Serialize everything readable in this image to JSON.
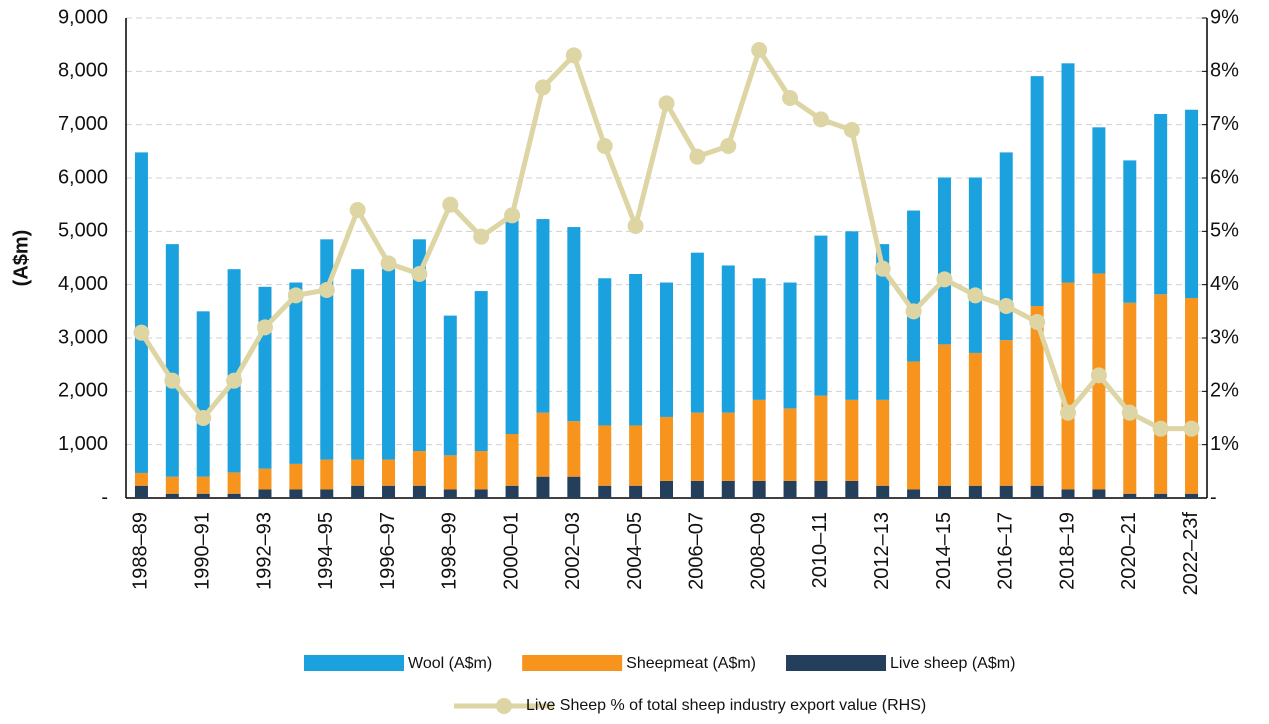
{
  "chart_data": {
    "type": "bar",
    "stacked": true,
    "ylabel": "(A$m)",
    "categories": [
      "1988–89",
      null,
      "1990–91",
      null,
      "1992–93",
      null,
      "1994–95",
      null,
      "1996–97",
      null,
      "1998–99",
      null,
      "2000–01",
      null,
      "2002–03",
      null,
      "2004–05",
      null,
      "2006–07",
      null,
      "2008–09",
      null,
      "2010–11",
      null,
      "2012–13",
      null,
      "2014–15",
      null,
      "2016–17",
      null,
      "2018–19",
      null,
      "2020–21",
      null,
      "2022–23f"
    ],
    "series": [
      {
        "name": "Wool (A$m)",
        "color": "#1ba1de",
        "values": [
          6010,
          4360,
          3100,
          3810,
          3410,
          3400,
          4130,
          3570,
          3580,
          3970,
          2620,
          3000,
          4070,
          3630,
          3640,
          2760,
          2840,
          2520,
          3000,
          2760,
          2280,
          2360,
          3000,
          3160,
          2920,
          2830,
          3130,
          3290,
          3520,
          4310,
          4110,
          2740,
          2670,
          3380,
          3530
        ]
      },
      {
        "name": "Sheepmeat (A$m)",
        "color": "#f7941d",
        "values": [
          240,
          320,
          320,
          400,
          390,
          480,
          560,
          490,
          490,
          650,
          640,
          720,
          970,
          1200,
          1040,
          1130,
          1130,
          1200,
          1280,
          1280,
          1520,
          1360,
          1600,
          1520,
          1610,
          2400,
          2650,
          2490,
          2730,
          3370,
          3880,
          4050,
          3580,
          3740,
          3670
        ]
      },
      {
        "name": "Live sheep (A$m)",
        "color": "#243f5c",
        "values": [
          230,
          80,
          80,
          80,
          160,
          160,
          160,
          230,
          230,
          230,
          160,
          160,
          230,
          400,
          400,
          230,
          230,
          320,
          320,
          320,
          320,
          320,
          320,
          320,
          230,
          160,
          230,
          230,
          230,
          230,
          160,
          160,
          80,
          80,
          80
        ]
      },
      {
        "name": "Live Sheep % of total sheep industry export value (RHS)",
        "color": "#ddd5a3",
        "type": "line",
        "axis": "y2",
        "values": [
          3.1,
          2.2,
          1.5,
          2.2,
          3.2,
          3.8,
          3.9,
          5.4,
          4.4,
          4.2,
          5.5,
          4.9,
          5.3,
          7.7,
          8.3,
          6.6,
          5.1,
          7.4,
          6.4,
          6.6,
          8.4,
          7.5,
          7.1,
          6.9,
          4.3,
          3.5,
          4.1,
          3.8,
          3.6,
          3.3,
          1.6,
          2.3,
          1.6,
          1.3,
          1.3
        ]
      }
    ],
    "ylim": [
      0,
      9000
    ],
    "yticks": [
      {
        "value": 0,
        "label": "-"
      },
      {
        "value": 1000,
        "label": "1,000"
      },
      {
        "value": 2000,
        "label": "2,000"
      },
      {
        "value": 3000,
        "label": "3,000"
      },
      {
        "value": 4000,
        "label": "4,000"
      },
      {
        "value": 5000,
        "label": "5,000"
      },
      {
        "value": 6000,
        "label": "6,000"
      },
      {
        "value": 7000,
        "label": "7,000"
      },
      {
        "value": 8000,
        "label": "8,000"
      },
      {
        "value": 9000,
        "label": "9,000"
      }
    ],
    "y2lim": [
      0,
      9
    ],
    "y2ticks": [
      {
        "value": 0,
        "label": "-"
      },
      {
        "value": 1,
        "label": "1%"
      },
      {
        "value": 2,
        "label": "2%"
      },
      {
        "value": 3,
        "label": "3%"
      },
      {
        "value": 4,
        "label": "4%"
      },
      {
        "value": 5,
        "label": "5%"
      },
      {
        "value": 6,
        "label": "6%"
      },
      {
        "value": 7,
        "label": "7%"
      },
      {
        "value": 8,
        "label": "8%"
      },
      {
        "value": 9,
        "label": "9%"
      }
    ],
    "grid": true
  }
}
